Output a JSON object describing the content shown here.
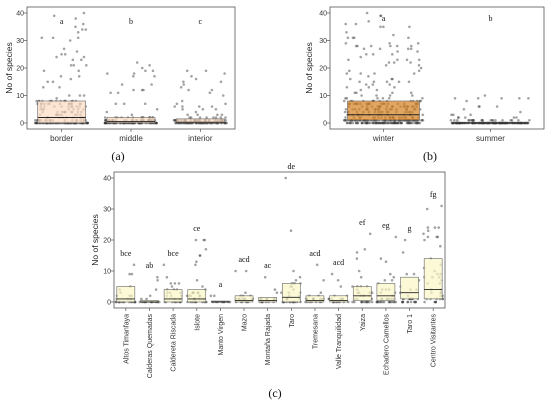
{
  "chart_data": [
    {
      "panel": "(a)",
      "type": "box",
      "ylabel": "No of species",
      "ylim": [
        0,
        40
      ],
      "yticks": [
        0,
        10,
        20,
        30,
        40
      ],
      "color": "#fcdcc0",
      "categories": [
        "border",
        "middle",
        "interior"
      ],
      "letters": [
        "a",
        "b",
        "c"
      ],
      "series": [
        {
          "category": "border",
          "q1": 0,
          "median": 2,
          "q3": 8,
          "max": 40
        },
        {
          "category": "middle",
          "q1": 0,
          "median": 0.5,
          "q3": 2,
          "max": 22
        },
        {
          "category": "interior",
          "q1": 0,
          "median": 0.3,
          "q3": 1.5,
          "max": 19
        }
      ]
    },
    {
      "panel": "(b)",
      "type": "box",
      "ylabel": "No of species",
      "ylim": [
        0,
        40
      ],
      "yticks": [
        0,
        10,
        20,
        30,
        40
      ],
      "color": "#d4801e",
      "categories": [
        "winter",
        "summer"
      ],
      "letters": [
        "a",
        "b"
      ],
      "series": [
        {
          "category": "winter",
          "q1": 1,
          "median": 3,
          "q3": 8,
          "max": 40
        },
        {
          "category": "summer",
          "q1": 0,
          "median": 0,
          "q3": 0.2,
          "max": 10
        }
      ]
    },
    {
      "panel": "(c)",
      "type": "box",
      "ylabel": "No of species",
      "ylim": [
        0,
        40
      ],
      "yticks": [
        0,
        10,
        20,
        30,
        40
      ],
      "color": "#fbf6c6",
      "categories": [
        "Altos Timanfaya",
        "Calderas Quemadas",
        "Caldereta Riscada",
        "Islote",
        "Manto Virgen",
        "Mazo",
        "Montaña Rajada",
        "Taro",
        "Tremesana",
        "Valle Tranquilidad",
        "Yaiza",
        "Echadero Camellos",
        "Taro 1",
        "Centro Visitantes"
      ],
      "letters": [
        "bce",
        "ab",
        "bce",
        "ce",
        "a",
        "acd",
        "ac",
        "de",
        "acd",
        "acd",
        "ef",
        "eg",
        "g",
        "fg"
      ],
      "series": [
        {
          "category": "Altos Timanfaya",
          "q1": 0,
          "median": 1,
          "q3": 5,
          "max": 12
        },
        {
          "category": "Calderas Quemadas",
          "q1": 0,
          "median": 0,
          "q3": 0.5,
          "max": 8
        },
        {
          "category": "Caldereta Riscada",
          "q1": 0,
          "median": 1,
          "q3": 4,
          "max": 12
        },
        {
          "category": "Islote",
          "q1": 0,
          "median": 1,
          "q3": 4,
          "max": 20
        },
        {
          "category": "Manto Virgen",
          "q1": 0,
          "median": 0,
          "q3": 0.3,
          "max": 2
        },
        {
          "category": "Mazo",
          "q1": 0,
          "median": 0.5,
          "q3": 2,
          "max": 10
        },
        {
          "category": "Montaña Rajada",
          "q1": 0,
          "median": 0.5,
          "q3": 1.5,
          "max": 8
        },
        {
          "category": "Taro",
          "q1": 0,
          "median": 1.5,
          "q3": 6,
          "max": 40
        },
        {
          "category": "Tremesana",
          "q1": 0,
          "median": 0.5,
          "q3": 2,
          "max": 12
        },
        {
          "category": "Valle Tranquilidad",
          "q1": 0,
          "median": 0.5,
          "q3": 2,
          "max": 9
        },
        {
          "category": "Yaiza",
          "q1": 0.5,
          "median": 2,
          "q3": 5,
          "max": 22
        },
        {
          "category": "Echadero Camellos",
          "q1": 0.5,
          "median": 2,
          "q3": 6,
          "max": 21
        },
        {
          "category": "Taro 1",
          "q1": 1,
          "median": 3,
          "q3": 8,
          "max": 20
        },
        {
          "category": "Centro Visitantes",
          "q1": 1,
          "median": 4,
          "q3": 14,
          "max": 31
        }
      ]
    }
  ]
}
